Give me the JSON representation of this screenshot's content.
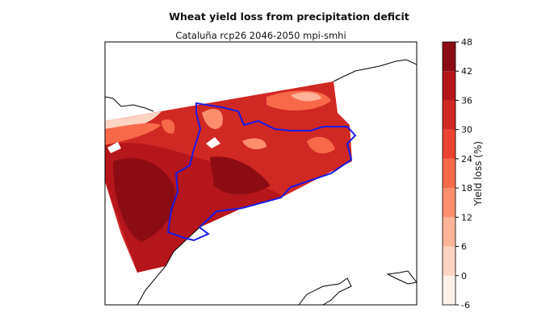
{
  "chart_data": {
    "type": "contour-map",
    "title": "Wheat yield loss from precipitation deficit",
    "subtitle": "Cataluña rcp26 2046-2050 mpi-smhi",
    "colorbar": {
      "label": "Yield loss (%)",
      "lim": [
        -6,
        48
      ],
      "ticks": [
        -6,
        0,
        6,
        12,
        18,
        24,
        30,
        36,
        42,
        48
      ],
      "colors": [
        "#fff0ea",
        "#fdd3c1",
        "#fcb398",
        "#fc8d6d",
        "#f8694a",
        "#eb4332",
        "#d02823",
        "#b5161b",
        "#8c0c14"
      ]
    },
    "border_color": "#1a1ae6"
  }
}
